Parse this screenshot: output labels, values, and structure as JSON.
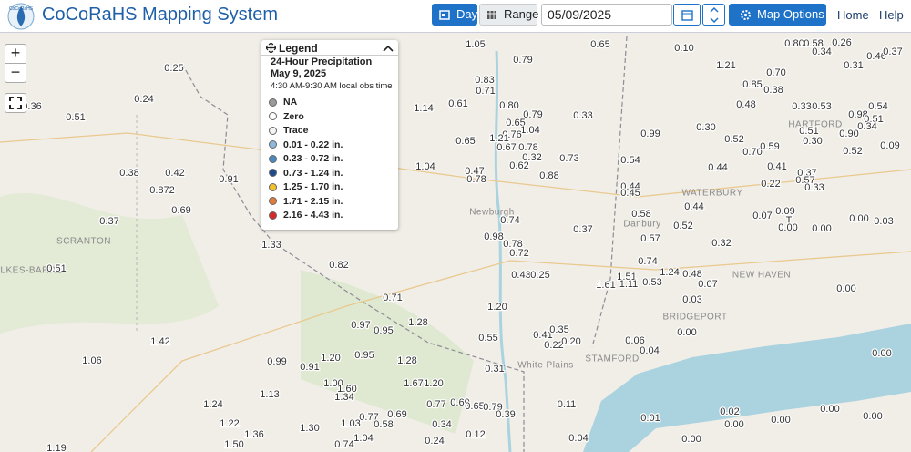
{
  "header": {
    "logo_text": "CoCoRaHS",
    "title": "CoCoRaHS Mapping System",
    "day": "Day",
    "range": "Range",
    "date": "05/09/2025",
    "map_options": "Map Options",
    "home": "Home",
    "help": "Help"
  },
  "map_controls": {
    "zoom_in": "+",
    "zoom_out": "−"
  },
  "legend": {
    "title": "Legend",
    "heading": "24-Hour Precipitation",
    "date": "May 9, 2025",
    "time": "4:30 AM-9:30 AM local obs time",
    "items": [
      {
        "label": "NA",
        "color": "#9a9a9a"
      },
      {
        "label": "Zero",
        "color": "#ffffff"
      },
      {
        "label": "Trace",
        "color": "#f4f4f4"
      },
      {
        "label": "0.01 - 0.22 in.",
        "color": "#8fb8da"
      },
      {
        "label": "0.23 - 0.72 in.",
        "color": "#4a89bf"
      },
      {
        "label": "0.73 - 1.24 in.",
        "color": "#1d4c8a"
      },
      {
        "label": "1.25 - 1.70 in.",
        "color": "#f2c12e"
      },
      {
        "label": "1.71 - 2.15 in.",
        "color": "#e07b39"
      },
      {
        "label": "2.16 - 4.43 in.",
        "color": "#d62828"
      }
    ]
  },
  "places": [
    "SCRANTON",
    "WILKES-BARRE",
    "WATERBURY",
    "HARTFORD",
    "NEW HAVEN",
    "BRIDGEPORT",
    "STAMFORD",
    "White Plains",
    "Newburgh",
    "Danbury"
  ],
  "stations": [
    "0.25",
    "0.36",
    "0.51",
    "0.24",
    "0.38",
    "0.42",
    "0.872",
    "0.91",
    "0.69",
    "0.37",
    "0.51",
    "1.33",
    "0.82",
    "1.05",
    "0.79",
    "0.65",
    "0.83",
    "0.71",
    "1.14",
    "0.61",
    "0.80",
    "0.79",
    "0.65",
    "1.04",
    "0.76",
    "0.65",
    "1.21",
    "0.67",
    "0.78",
    "0.62",
    "0.32",
    "0.88",
    "0.73",
    "0.33",
    "1.04",
    "0.47",
    "0.78",
    "0.74",
    "0.98",
    "0.78",
    "0.72",
    "0.37",
    "0.43",
    "0.25",
    "1.20",
    "0.71",
    "0.97",
    "0.95",
    "1.28",
    "0.55",
    "0.41",
    "0.35",
    "0.22",
    "0.20",
    "1.42",
    "1.06",
    "0.99",
    "0.91",
    "1.20",
    "0.95",
    "1.28",
    "0.31",
    "1.67",
    "1.20",
    "1.00",
    "1.60",
    "1.34",
    "1.13",
    "1.24",
    "0.77",
    "0.60",
    "0.65",
    "0.79",
    "0.39",
    "0.11",
    "0.69",
    "0.77",
    "0.58",
    "1.03",
    "0.34",
    "1.30",
    "1.22",
    "1.36",
    "0.12",
    "0.04",
    "0.24",
    "0.74",
    "1.04",
    "1.50",
    "1.19",
    "0.99",
    "0.54",
    "0.44",
    "0.45",
    "0.58",
    "0.52",
    "0.57",
    "0.74",
    "1.51",
    "1.11",
    "1.24",
    "0.53",
    "1.61",
    "0.48",
    "0.07",
    "0.03",
    "0.00",
    "0.06",
    "0.04",
    "0.44",
    "0.32",
    "0.44",
    "0.30",
    "0.52",
    "0.48",
    "0.70",
    "0.10",
    "1.21",
    "0.85",
    "0.70",
    "0.38",
    "0.59",
    "0.41",
    "0.22",
    "0.07",
    "0.09",
    "T",
    "0.00",
    "0.53",
    "0.33",
    "0.80",
    "0.58",
    "0.26",
    "0.34",
    "0.31",
    "0.46",
    "0.37",
    "0.98",
    "0.54",
    "0.51",
    "0.34",
    "0.51",
    "0.90",
    "0.52",
    "0.09",
    "0.30",
    "0.37",
    "0.57",
    "0.33",
    "0.00",
    "0.00",
    "0.03",
    "0.00",
    "0.00",
    "0.01",
    "0.02",
    "0.00",
    "0.00",
    "0.00",
    "0.00",
    "0.00"
  ]
}
